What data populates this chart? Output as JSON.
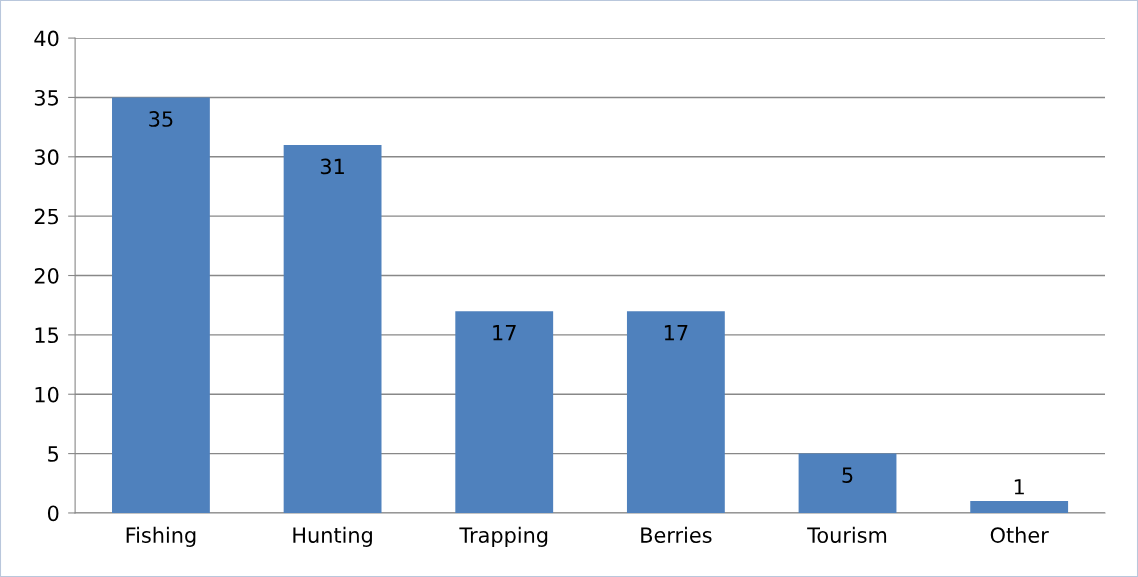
{
  "chart_data": {
    "type": "bar",
    "categories": [
      "Fishing",
      "Hunting",
      "Trapping",
      "Berries",
      "Tourism",
      "Other"
    ],
    "values": [
      35,
      31,
      17,
      17,
      5,
      1
    ],
    "color": "#4f81bd",
    "ylim": [
      0,
      40
    ],
    "yticks": [
      0,
      5,
      10,
      15,
      20,
      25,
      30,
      35,
      40
    ],
    "grid": "y",
    "data_labels": true
  }
}
